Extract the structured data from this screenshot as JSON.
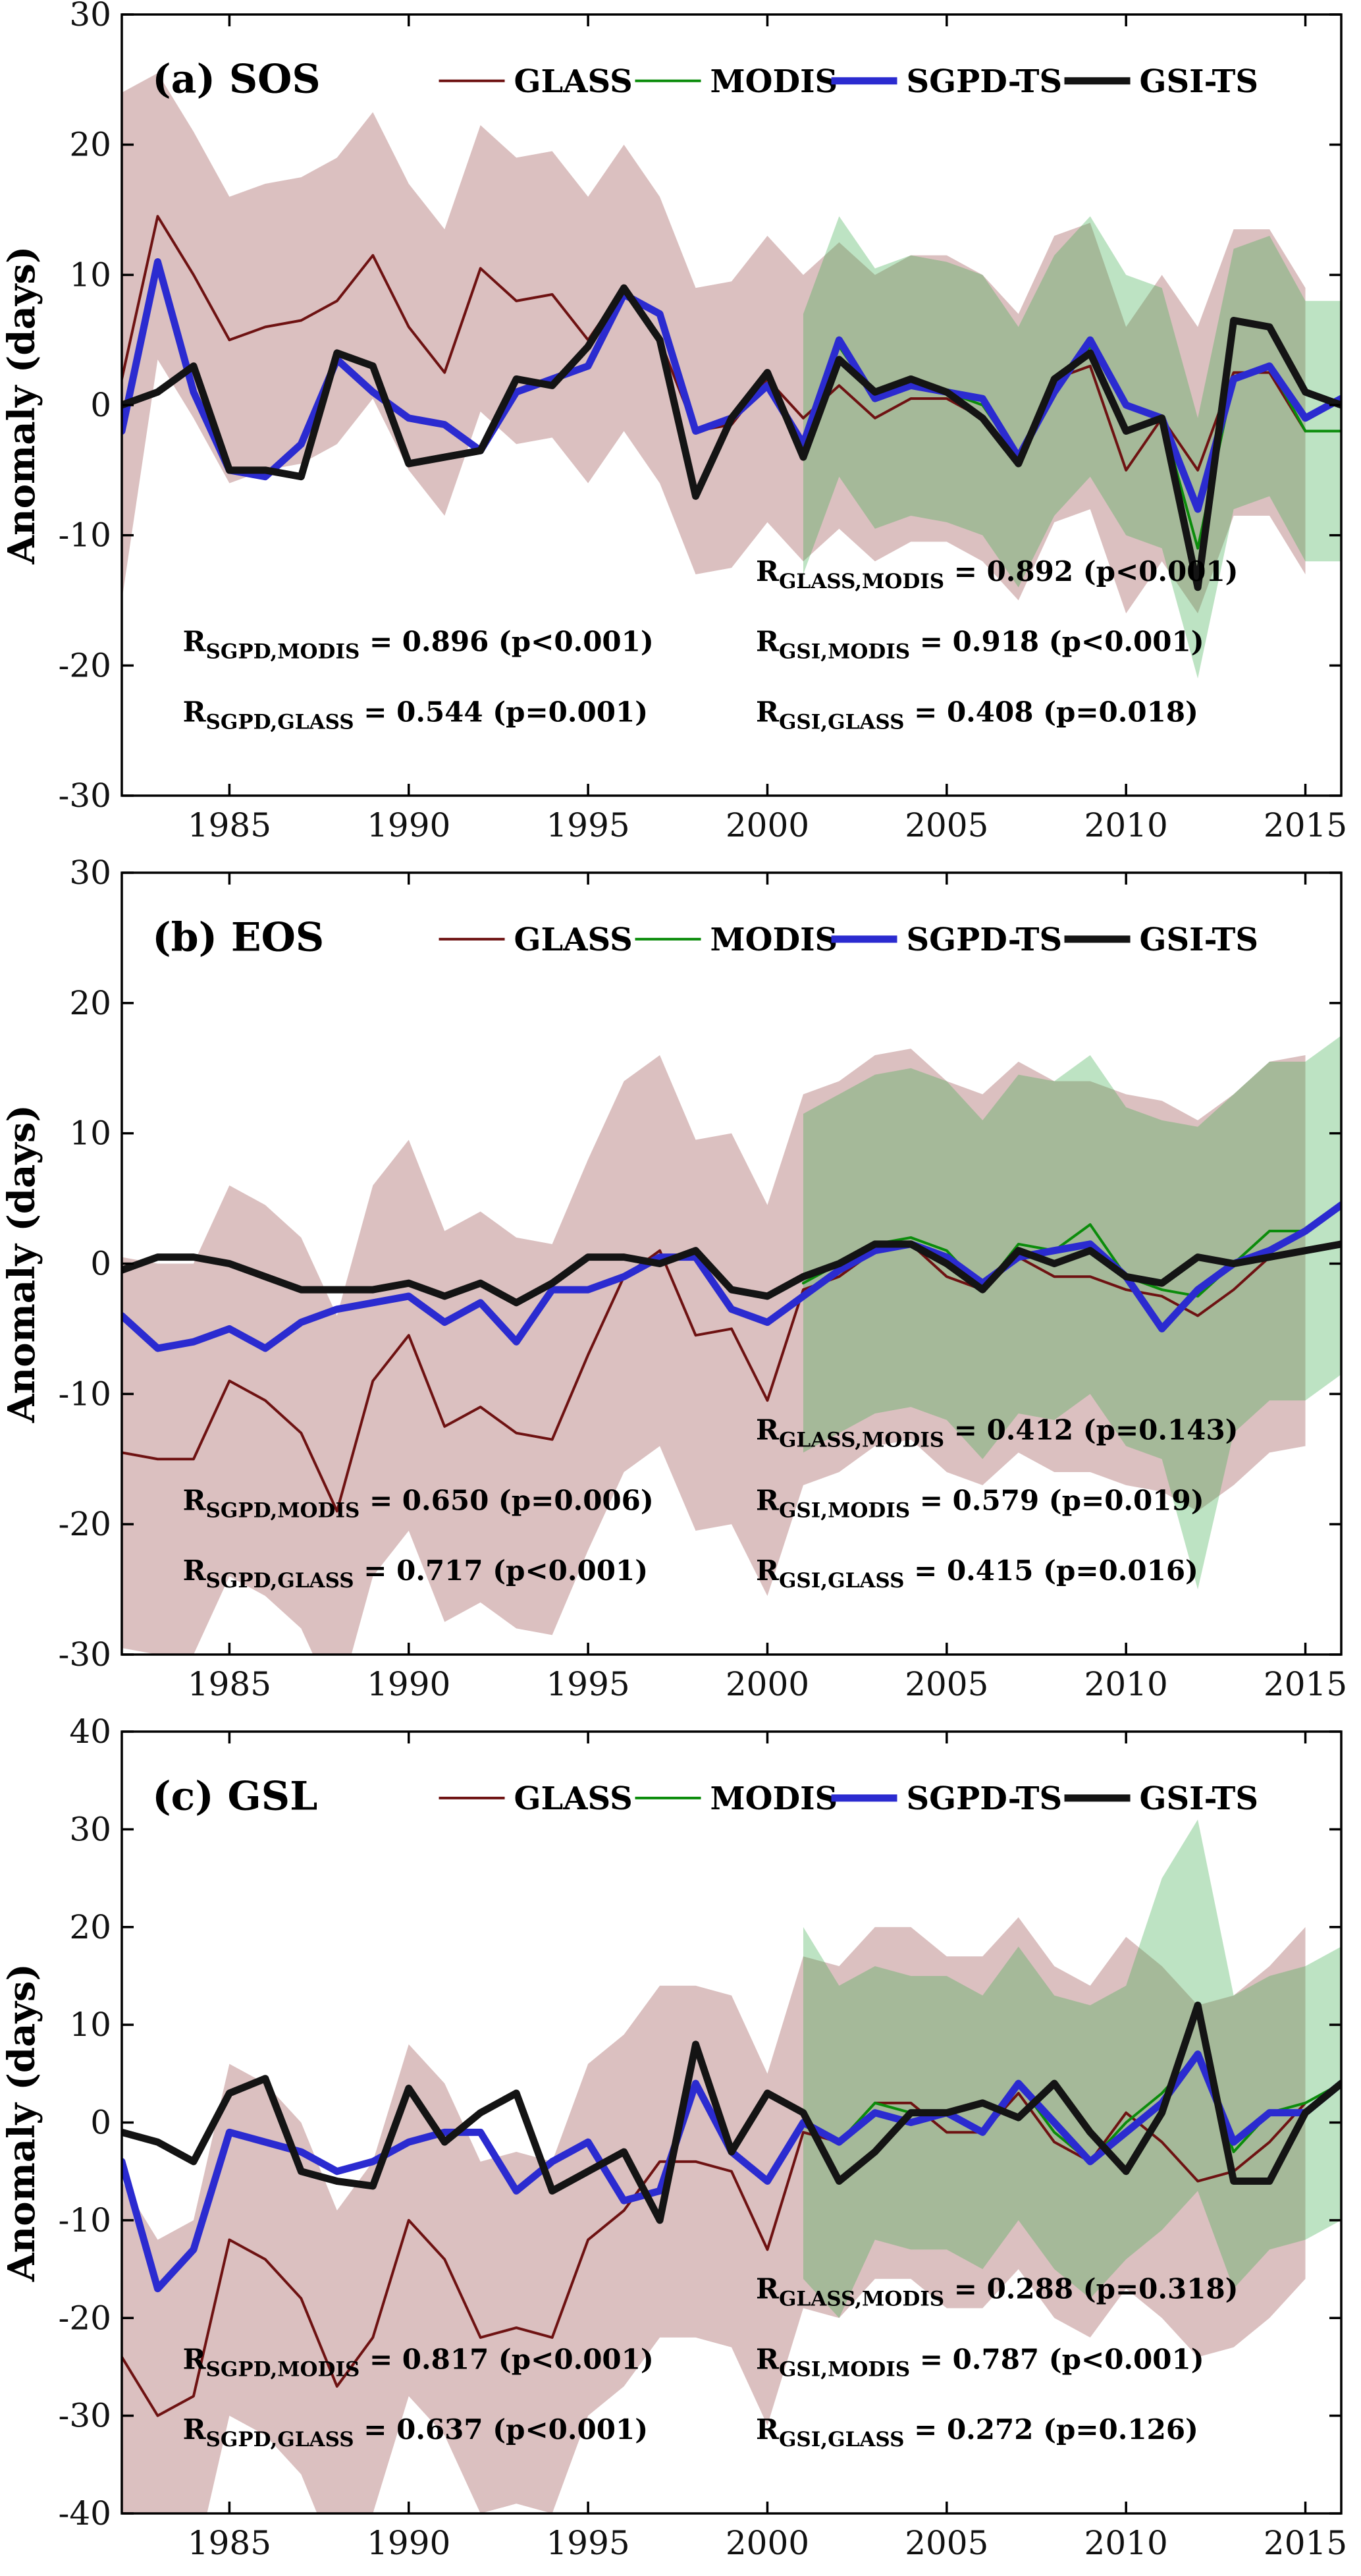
{
  "figure": {
    "ylabel": "Anomaly (days)",
    "panel_titles": [
      "(a) SOS",
      "(b) EOS",
      "(c) GSL"
    ]
  },
  "style": {
    "glass_color": "#6E1212",
    "modis_color": "#0B8C0B",
    "sgpd_color": "#2B2BD0",
    "gsi_color": "#141414",
    "glass_band_color": "#7B1518",
    "modis_band_color": "#3FAE4F",
    "axis_color": "#000000"
  },
  "chart_data": [
    {
      "id": "a",
      "type": "line",
      "title": "(a) SOS",
      "ylabel": "Anomaly (days)",
      "xlim": [
        1982,
        2016
      ],
      "ylim": [
        -30,
        30
      ],
      "xticks": [
        1985,
        1990,
        1995,
        2000,
        2005,
        2010,
        2015
      ],
      "yticks": [
        -30,
        -20,
        -10,
        0,
        10,
        20,
        30
      ],
      "legend_fx": 0.26,
      "legend_fy": 0.085,
      "legend": [
        {
          "label": "GLASS",
          "color": "#6E1212",
          "width": 4
        },
        {
          "label": "MODIS",
          "color": "#0B8C0B",
          "width": 4
        },
        {
          "label": "SGPD-TS",
          "color": "#2B2BD0",
          "width": 11
        },
        {
          "label": "GSI-TS",
          "color": "#141414",
          "width": 11
        }
      ],
      "bands": [
        {
          "name": "glass-uncertainty-band",
          "start": 1982,
          "color": "#7B1518",
          "opacity": 0.27,
          "upper": [
            24,
            25.5,
            21,
            16,
            17,
            17.5,
            19,
            22.5,
            17,
            13.5,
            21.5,
            19,
            19.5,
            16,
            20,
            16,
            9,
            9.5,
            13,
            10,
            12.5,
            10,
            11.5,
            11.5,
            10,
            7,
            13,
            14,
            6,
            10,
            6,
            13.5,
            13.5,
            9
          ],
          "lower": [
            -15,
            3.5,
            -1,
            -6,
            -5,
            -4.5,
            -3,
            0.5,
            -5,
            -8.5,
            -0.5,
            -3,
            -2.5,
            -6,
            -2,
            -6,
            -13,
            -12.5,
            -9,
            -12,
            -9.5,
            -12,
            -10.5,
            -10.5,
            -12,
            -15,
            -9,
            -8,
            -16,
            -12,
            -16,
            -8.5,
            -8.5,
            -13
          ]
        },
        {
          "name": "modis-uncertainty-band",
          "start": 2001,
          "color": "#3FAE4F",
          "opacity": 0.34,
          "upper": [
            7,
            14.5,
            10.5,
            11.5,
            11,
            10,
            6,
            11.5,
            14.5,
            10,
            9,
            -1,
            12,
            13,
            8,
            8
          ],
          "lower": [
            -13,
            -5.5,
            -9.5,
            -8.5,
            -9,
            -10,
            -14,
            -8.5,
            -5.5,
            -10,
            -11,
            -21,
            -8,
            -7,
            -12,
            -12
          ]
        }
      ],
      "series": [
        {
          "name": "GLASS",
          "start": 1982,
          "color": "#6E1212",
          "width": 4,
          "values": [
            2,
            14.5,
            10,
            5,
            6,
            6.5,
            8,
            11.5,
            6,
            2.5,
            10.5,
            8,
            8.5,
            5,
            9,
            5,
            -2,
            -1.5,
            2,
            -1,
            1.5,
            -1,
            0.5,
            0.5,
            -1,
            -4,
            2,
            3,
            -5,
            -1,
            -5,
            2.5,
            2.5,
            -2
          ]
        },
        {
          "name": "MODIS",
          "start": 2001,
          "color": "#0B8C0B",
          "width": 4,
          "values": [
            -3,
            4.5,
            0.5,
            1.5,
            1,
            0,
            -4,
            1.5,
            4.5,
            0,
            -1,
            -11,
            2,
            3,
            -2,
            -2
          ]
        },
        {
          "name": "SGPD-TS",
          "start": 1982,
          "color": "#2B2BD0",
          "width": 11,
          "values": [
            -2,
            11,
            1,
            -5,
            -5.5,
            -3,
            3.5,
            1,
            -1,
            -1.5,
            -3.5,
            1,
            2,
            3,
            8.5,
            7,
            -2,
            -1,
            1.5,
            -3,
            5,
            0.5,
            1.5,
            1,
            0.5,
            -4,
            1,
            5,
            0,
            -1,
            -8,
            2,
            3,
            -1,
            0.5
          ]
        },
        {
          "name": "GSI-TS",
          "start": 1982,
          "color": "#141414",
          "width": 11,
          "values": [
            0,
            1,
            3,
            -5,
            -5,
            -5.5,
            4,
            3,
            -4.5,
            -4,
            -3.5,
            2,
            1.5,
            4.5,
            9,
            5,
            -7,
            -1,
            2.5,
            -4,
            3.5,
            1,
            2,
            1,
            -1,
            -4.5,
            2,
            4,
            -2,
            -1,
            -14,
            6.5,
            6,
            1,
            0
          ]
        }
      ],
      "annotations": [
        {
          "sub": "SGPD,MODIS",
          "rest": " = 0.896 (p<0.001)",
          "fx": 0.05,
          "fy": 0.815
        },
        {
          "sub": "SGPD,GLASS",
          "rest": " = 0.544 (p=0.001)",
          "fx": 0.05,
          "fy": 0.905
        },
        {
          "sub": "GLASS,MODIS",
          "rest": " = 0.892 (p<0.001)",
          "fx": 0.52,
          "fy": 0.725
        },
        {
          "sub": "GSI,MODIS",
          "rest": " = 0.918 (p<0.001)",
          "fx": 0.52,
          "fy": 0.815
        },
        {
          "sub": "GSI,GLASS",
          "rest": " = 0.408 (p=0.018)",
          "fx": 0.52,
          "fy": 0.905
        }
      ]
    },
    {
      "id": "b",
      "type": "line",
      "title": "(b) EOS",
      "ylabel": "Anomaly (days)",
      "xlim": [
        1982,
        2016
      ],
      "ylim": [
        -30,
        30
      ],
      "xticks": [
        1985,
        1990,
        1995,
        2000,
        2005,
        2010,
        2015
      ],
      "yticks": [
        -30,
        -20,
        -10,
        0,
        10,
        20,
        30
      ],
      "legend_fx": 0.26,
      "legend_fy": 0.085,
      "legend": [
        {
          "label": "GLASS",
          "color": "#6E1212",
          "width": 4
        },
        {
          "label": "MODIS",
          "color": "#0B8C0B",
          "width": 4
        },
        {
          "label": "SGPD-TS",
          "color": "#2B2BD0",
          "width": 11
        },
        {
          "label": "GSI-TS",
          "color": "#141414",
          "width": 11
        }
      ],
      "bands": [
        {
          "name": "glass-uncertainty-band",
          "start": 1982,
          "color": "#7B1518",
          "opacity": 0.27,
          "upper": [
            0.5,
            0,
            0,
            6,
            4.5,
            2,
            -4,
            6,
            9.5,
            2.5,
            4,
            2,
            1.5,
            8,
            14,
            16,
            9.5,
            10,
            4.5,
            13,
            14,
            16,
            16.5,
            14,
            13,
            15.5,
            14,
            14,
            13,
            12.5,
            11,
            13,
            15.5,
            16
          ],
          "lower": [
            -29.5,
            -30,
            -30,
            -24,
            -25.5,
            -28,
            -34,
            -24,
            -20.5,
            -27.5,
            -26,
            -28,
            -28.5,
            -22,
            -16,
            -14,
            -20.5,
            -20,
            -25.5,
            -17,
            -16,
            -14,
            -13.5,
            -16,
            -17,
            -14.5,
            -16,
            -16,
            -17,
            -17.5,
            -19,
            -17,
            -14.5,
            -14
          ]
        },
        {
          "name": "modis-uncertainty-band",
          "start": 2001,
          "color": "#3FAE4F",
          "opacity": 0.34,
          "upper": [
            11.5,
            13,
            14.5,
            15,
            14,
            11,
            14.5,
            14,
            16,
            12,
            11,
            10.5,
            13,
            15.5,
            15.5,
            17.5
          ],
          "lower": [
            -14.5,
            -13,
            -11.5,
            -11,
            -12,
            -15,
            -11.5,
            -12,
            -10,
            -14,
            -15,
            -25,
            -13,
            -10.5,
            -10.5,
            -8.5
          ]
        }
      ],
      "series": [
        {
          "name": "GLASS",
          "start": 1982,
          "color": "#6E1212",
          "width": 4,
          "values": [
            -14.5,
            -15,
            -15,
            -9,
            -10.5,
            -13,
            -19,
            -9,
            -5.5,
            -12.5,
            -11,
            -13,
            -13.5,
            -7,
            -1,
            1,
            -5.5,
            -5,
            -10.5,
            -2,
            -1,
            1,
            1.5,
            -1,
            -2,
            0.5,
            -1,
            -1,
            -2,
            -2.5,
            -4,
            -2,
            0.5,
            1
          ]
        },
        {
          "name": "MODIS",
          "start": 2001,
          "color": "#0B8C0B",
          "width": 4,
          "values": [
            -1.5,
            0,
            1.5,
            2,
            1,
            -2,
            1.5,
            1,
            3,
            -1,
            -2,
            -2.5,
            0,
            2.5,
            2.5,
            4.5
          ]
        },
        {
          "name": "SGPD-TS",
          "start": 1982,
          "color": "#2B2BD0",
          "width": 11,
          "values": [
            -4,
            -6.5,
            -6,
            -5,
            -6.5,
            -4.5,
            -3.5,
            -3,
            -2.5,
            -4.5,
            -3,
            -6,
            -2,
            -2,
            -1,
            0.5,
            0.5,
            -3.5,
            -4.5,
            -2.5,
            -0.5,
            1,
            1.5,
            0.5,
            -1.5,
            0.5,
            1,
            1.5,
            -1,
            -5,
            -2,
            0,
            1,
            2.5,
            4.5
          ]
        },
        {
          "name": "GSI-TS",
          "start": 1982,
          "color": "#141414",
          "width": 11,
          "values": [
            -0.5,
            0.5,
            0.5,
            0,
            -1,
            -2,
            -2,
            -2,
            -1.5,
            -2.5,
            -1.5,
            -3,
            -1.5,
            0.5,
            0.5,
            0,
            1,
            -2,
            -2.5,
            -1,
            0,
            1.5,
            1.5,
            0,
            -2,
            1,
            0,
            1,
            -1,
            -1.5,
            0.5,
            0,
            0.5,
            1,
            1.5
          ]
        }
      ],
      "annotations": [
        {
          "sub": "SGPD,MODIS",
          "rest": " = 0.650 (p=0.006)",
          "fx": 0.05,
          "fy": 0.815
        },
        {
          "sub": "SGPD,GLASS",
          "rest": " = 0.717 (p<0.001)",
          "fx": 0.05,
          "fy": 0.905
        },
        {
          "sub": "GLASS,MODIS",
          "rest": " = 0.412 (p=0.143)",
          "fx": 0.52,
          "fy": 0.725
        },
        {
          "sub": "GSI,MODIS",
          "rest": " = 0.579 (p=0.019)",
          "fx": 0.52,
          "fy": 0.815
        },
        {
          "sub": "GSI,GLASS",
          "rest": " = 0.415 (p=0.016)",
          "fx": 0.52,
          "fy": 0.905
        }
      ]
    },
    {
      "id": "c",
      "type": "line",
      "title": "(c) GSL",
      "ylabel": "Anomaly (days)",
      "xlim": [
        1982,
        2016
      ],
      "ylim": [
        -40,
        40
      ],
      "xticks": [
        1985,
        1990,
        1995,
        2000,
        2005,
        2010,
        2015
      ],
      "yticks": [
        -40,
        -30,
        -20,
        -10,
        0,
        10,
        20,
        30,
        40
      ],
      "legend_fx": 0.26,
      "legend_fy": 0.085,
      "legend": [
        {
          "label": "GLASS",
          "color": "#6E1212",
          "width": 4
        },
        {
          "label": "MODIS",
          "color": "#0B8C0B",
          "width": 4
        },
        {
          "label": "SGPD-TS",
          "color": "#2B2BD0",
          "width": 11
        },
        {
          "label": "GSI-TS",
          "color": "#141414",
          "width": 11
        }
      ],
      "bands": [
        {
          "name": "glass-uncertainty-band",
          "start": 1982,
          "color": "#7B1518",
          "opacity": 0.27,
          "upper": [
            -6,
            -12,
            -10,
            6,
            4,
            0,
            -9,
            -4,
            8,
            4,
            -4,
            -3,
            -4,
            6,
            9,
            14,
            14,
            13,
            5,
            17,
            16,
            20,
            20,
            17,
            17,
            21,
            16,
            14,
            19,
            16,
            12,
            13,
            16,
            20
          ],
          "lower": [
            -42,
            -48,
            -46,
            -30,
            -32,
            -36,
            -45,
            -40,
            -28,
            -32,
            -40,
            -39,
            -40,
            -30,
            -27,
            -22,
            -22,
            -23,
            -31,
            -19,
            -20,
            -16,
            -16,
            -19,
            -19,
            -15,
            -20,
            -22,
            -17,
            -20,
            -24,
            -23,
            -20,
            -16
          ]
        },
        {
          "name": "modis-uncertainty-band",
          "start": 2001,
          "color": "#3FAE4F",
          "opacity": 0.34,
          "upper": [
            20,
            14,
            16,
            15,
            15,
            13,
            18,
            13,
            12,
            14,
            25,
            31,
            13,
            15,
            16,
            18
          ],
          "lower": [
            -16,
            -20,
            -12,
            -13,
            -13,
            -15,
            -10,
            -15,
            -18,
            -14,
            -11,
            -7,
            -17,
            -13,
            -12,
            -10
          ]
        }
      ],
      "series": [
        {
          "name": "GLASS",
          "start": 1982,
          "color": "#6E1212",
          "width": 4,
          "values": [
            -24,
            -30,
            -28,
            -12,
            -14,
            -18,
            -27,
            -22,
            -10,
            -14,
            -22,
            -21,
            -22,
            -12,
            -9,
            -4,
            -4,
            -5,
            -13,
            -1,
            -2,
            2,
            2,
            -1,
            -1,
            3,
            -2,
            -4,
            1,
            -2,
            -6,
            -5,
            -2,
            2
          ]
        },
        {
          "name": "MODIS",
          "start": 2001,
          "color": "#0B8C0B",
          "width": 4,
          "values": [
            0,
            -2,
            2,
            1,
            1,
            -1,
            4,
            -1,
            -4,
            0,
            3,
            7,
            -3,
            1,
            2,
            4
          ]
        },
        {
          "name": "SGPD-TS",
          "start": 1982,
          "color": "#2B2BD0",
          "width": 11,
          "values": [
            -4,
            -17,
            -13,
            -1,
            -2,
            -3,
            -5,
            -4,
            -2,
            -1,
            -1,
            -7,
            -4,
            -2,
            -8,
            -7,
            4,
            -3,
            -6,
            0,
            -2,
            1,
            0,
            1,
            -1,
            4,
            0,
            -4,
            -1,
            2,
            7,
            -2,
            1,
            1,
            4
          ]
        },
        {
          "name": "GSI-TS",
          "start": 1982,
          "color": "#141414",
          "width": 11,
          "values": [
            -1,
            -2,
            -4,
            3,
            4.5,
            -5,
            -6,
            -6.5,
            3.5,
            -2,
            1,
            3,
            -7,
            -5,
            -3,
            -10,
            8,
            -3,
            3,
            1,
            -6,
            -3,
            1,
            1,
            2,
            0.5,
            4,
            -1,
            -5,
            1,
            12,
            -6,
            -6,
            1,
            4
          ]
        }
      ],
      "annotations": [
        {
          "sub": "SGPD,MODIS",
          "rest": " = 0.817 (p<0.001)",
          "fx": 0.05,
          "fy": 0.815
        },
        {
          "sub": "SGPD,GLASS",
          "rest": " = 0.637 (p<0.001)",
          "fx": 0.05,
          "fy": 0.905
        },
        {
          "sub": "GLASS,MODIS",
          "rest": " = 0.288 (p=0.318)",
          "fx": 0.52,
          "fy": 0.725
        },
        {
          "sub": "GSI,MODIS",
          "rest": " = 0.787 (p<0.001)",
          "fx": 0.52,
          "fy": 0.815
        },
        {
          "sub": "GSI,GLASS",
          "rest": " = 0.272 (p=0.126)",
          "fx": 0.52,
          "fy": 0.905
        }
      ]
    }
  ]
}
